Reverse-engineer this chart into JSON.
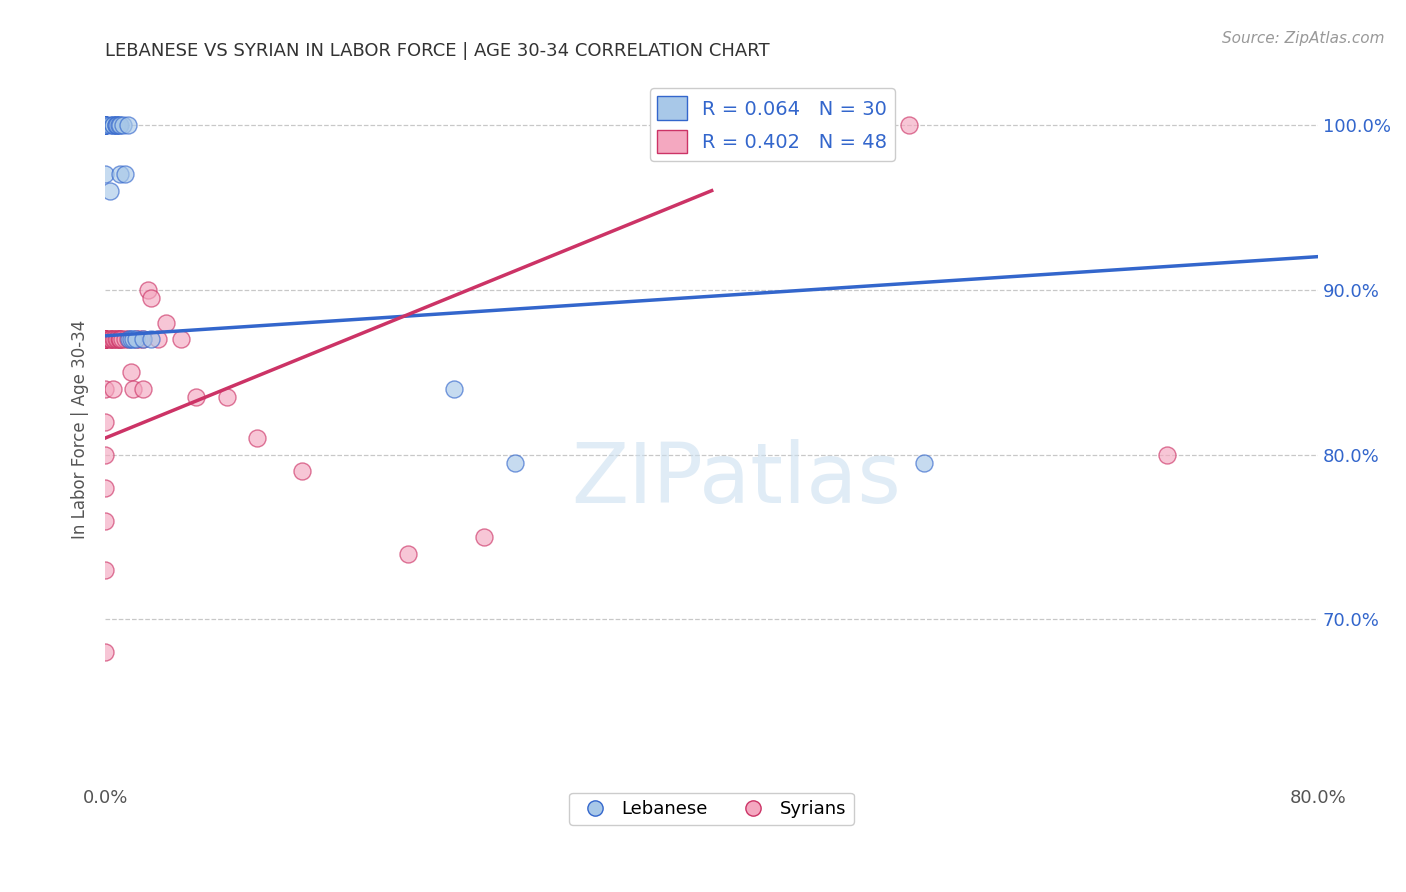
{
  "title": "LEBANESE VS SYRIAN IN LABOR FORCE | AGE 30-34 CORRELATION CHART",
  "source": "Source: ZipAtlas.com",
  "ylabel": "In Labor Force | Age 30-34",
  "xlabel": "",
  "xlim": [
    0.0,
    0.8
  ],
  "ylim": [
    0.6,
    1.03
  ],
  "yticks": [
    0.7,
    0.8,
    0.9,
    1.0
  ],
  "ytick_labels": [
    "70.0%",
    "80.0%",
    "90.0%",
    "100.0%"
  ],
  "xticks": [
    0.0,
    0.4,
    0.8
  ],
  "xtick_labels": [
    "0.0%",
    "",
    "80.0%"
  ],
  "R_lebanese": 0.064,
  "N_lebanese": 30,
  "R_syrians": 0.402,
  "N_syrians": 48,
  "blue_color": "#a8c8e8",
  "pink_color": "#f4a8c0",
  "blue_line_color": "#3366cc",
  "pink_line_color": "#cc3366",
  "watermark_text": "ZIPatlas",
  "background_color": "#ffffff",
  "grid_color": "#c8c8c8",
  "leb_line_x0": 0.0,
  "leb_line_y0": 0.872,
  "leb_line_x1": 0.8,
  "leb_line_y1": 0.92,
  "syr_line_x0": 0.0,
  "syr_line_y0": 0.81,
  "syr_line_x1": 0.4,
  "syr_line_y1": 0.96,
  "lebanese_x": [
    0.0,
    0.0,
    0.0,
    0.0,
    0.0,
    0.0,
    0.0,
    0.0,
    0.003,
    0.003,
    0.005,
    0.005,
    0.007,
    0.007,
    0.008,
    0.009,
    0.01,
    0.01,
    0.012,
    0.013,
    0.015,
    0.016,
    0.017,
    0.018,
    0.02,
    0.025,
    0.03,
    0.23,
    0.27,
    0.54
  ],
  "lebanese_y": [
    1.0,
    1.0,
    1.0,
    1.0,
    1.0,
    1.0,
    1.0,
    0.97,
    1.0,
    0.96,
    1.0,
    1.0,
    1.0,
    1.0,
    1.0,
    1.0,
    1.0,
    0.97,
    1.0,
    0.97,
    1.0,
    0.87,
    0.87,
    0.87,
    0.87,
    0.87,
    0.87,
    0.84,
    0.795,
    0.795
  ],
  "syrian_x": [
    0.0,
    0.0,
    0.0,
    0.0,
    0.0,
    0.0,
    0.0,
    0.0,
    0.0,
    0.0,
    0.0,
    0.0,
    0.0,
    0.0,
    0.0,
    0.003,
    0.003,
    0.004,
    0.005,
    0.005,
    0.006,
    0.007,
    0.008,
    0.009,
    0.01,
    0.01,
    0.011,
    0.013,
    0.015,
    0.017,
    0.018,
    0.02,
    0.022,
    0.025,
    0.025,
    0.028,
    0.03,
    0.035,
    0.04,
    0.05,
    0.06,
    0.08,
    0.1,
    0.13,
    0.2,
    0.25,
    0.53,
    0.7
  ],
  "syrian_y": [
    0.87,
    0.87,
    0.87,
    0.87,
    0.87,
    0.87,
    0.87,
    0.87,
    0.84,
    0.82,
    0.8,
    0.78,
    0.76,
    0.73,
    0.68,
    0.87,
    0.87,
    0.87,
    0.87,
    0.84,
    0.87,
    0.87,
    0.87,
    0.87,
    0.87,
    0.87,
    0.87,
    0.87,
    0.87,
    0.85,
    0.84,
    0.87,
    0.87,
    0.87,
    0.84,
    0.9,
    0.895,
    0.87,
    0.88,
    0.87,
    0.835,
    0.835,
    0.81,
    0.79,
    0.74,
    0.75,
    1.0,
    0.8
  ]
}
